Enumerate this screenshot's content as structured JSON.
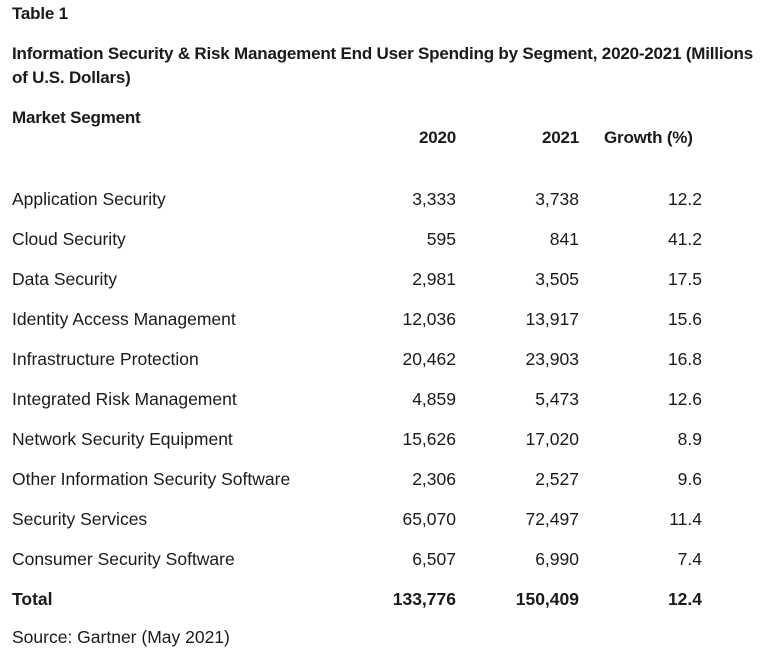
{
  "table_label": "Table 1",
  "title": "Information Security & Risk Management End User Spending by Segment, 2020-2021 (Millions of U.S. Dollars)",
  "headers": {
    "segment": "Market Segment",
    "y2020": "2020",
    "y2021": "2021",
    "growth": "Growth (%)"
  },
  "rows": [
    {
      "segment": "Application Security",
      "y2020": "3,333",
      "y2021": "3,738",
      "growth": "12.2"
    },
    {
      "segment": "Cloud Security",
      "y2020": "595",
      "y2021": "841",
      "growth": "41.2"
    },
    {
      "segment": "Data Security",
      "y2020": "2,981",
      "y2021": "3,505",
      "growth": "17.5"
    },
    {
      "segment": "Identity Access Management",
      "y2020": "12,036",
      "y2021": "13,917",
      "growth": "15.6"
    },
    {
      "segment": "Infrastructure Protection",
      "y2020": "20,462",
      "y2021": "23,903",
      "growth": "16.8"
    },
    {
      "segment": "Integrated Risk Management",
      "y2020": "4,859",
      "y2021": "5,473",
      "growth": "12.6"
    },
    {
      "segment": "Network Security Equipment",
      "y2020": "15,626",
      "y2021": "17,020",
      "growth": "8.9"
    },
    {
      "segment": "Other Information Security Software",
      "y2020": "2,306",
      "y2021": "2,527",
      "growth": "9.6"
    },
    {
      "segment": "Security Services",
      "y2020": "65,070",
      "y2021": "72,497",
      "growth": "11.4"
    },
    {
      "segment": "Consumer Security Software",
      "y2020": "6,507",
      "y2021": "6,990",
      "growth": "7.4"
    }
  ],
  "total": {
    "segment": "Total",
    "y2020": "133,776",
    "y2021": "150,409",
    "growth": "12.4"
  },
  "source": "Source: Gartner (May 2021)"
}
